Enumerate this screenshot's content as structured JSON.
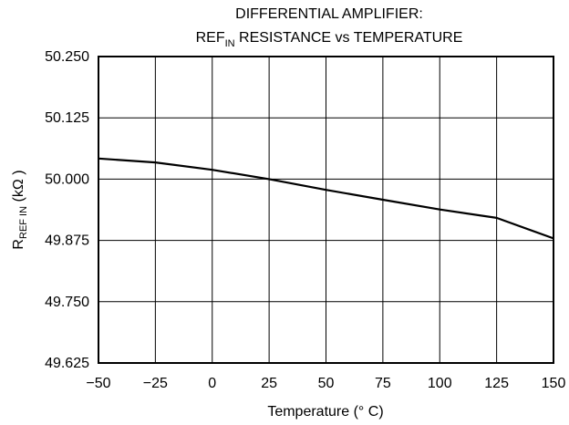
{
  "chart_data": {
    "type": "line",
    "title_line1": "DIFFERENTIAL AMPLIFIER:",
    "title_line2_main": "REF",
    "title_line2_sub": "IN",
    "title_line2_rest": " RESISTANCE vs TEMPERATURE",
    "xlabel": "Temperature (° C)",
    "ylabel_main": "R",
    "ylabel_sub": "REF IN",
    "ylabel_rest": " (kΩ )",
    "xlim": [
      -50,
      150
    ],
    "ylim": [
      49.625,
      50.25
    ],
    "x_ticks": [
      -50,
      -25,
      0,
      25,
      50,
      75,
      100,
      125,
      150
    ],
    "x_tick_labels": [
      "−50",
      "−25",
      "0",
      "25",
      "50",
      "75",
      "100",
      "125",
      "150"
    ],
    "y_ticks": [
      49.625,
      49.75,
      49.875,
      50.0,
      50.125,
      50.25
    ],
    "y_tick_labels": [
      "49.625",
      "49.750",
      "49.875",
      "50.000",
      "50.125",
      "50.250"
    ],
    "grid": true,
    "series": [
      {
        "x": [
          -50,
          -25,
          0,
          25,
          50,
          75,
          100,
          125,
          150
        ],
        "y": [
          50.042,
          50.034,
          50.019,
          50.0,
          49.978,
          49.958,
          49.938,
          49.921,
          49.879
        ]
      }
    ]
  }
}
